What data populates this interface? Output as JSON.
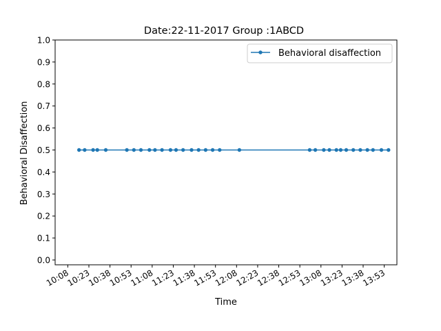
{
  "chart_data": {
    "type": "line",
    "title": "Date:22-11-2017 Group :1ABCD",
    "xlabel": "Time",
    "ylabel": "Behavioral Disaffection",
    "ylim": [
      0,
      1.0
    ],
    "yticks": [
      "0.0",
      "0.1",
      "0.2",
      "0.3",
      "0.4",
      "0.5",
      "0.6",
      "0.7",
      "0.8",
      "0.9",
      "1.0"
    ],
    "xticks": [
      "10:08",
      "10:23",
      "10:38",
      "10:53",
      "11:08",
      "11:23",
      "11:38",
      "11:53",
      "12:08",
      "12:23",
      "12:38",
      "12:53",
      "13:08",
      "13:23",
      "13:38",
      "13:53"
    ],
    "xlim": [
      "09:59",
      "14:02"
    ],
    "grid": false,
    "legend_position": "top-right",
    "series": [
      {
        "name": "Behavioral disaffection",
        "color": "#1f77b4",
        "marker": "circle",
        "x": [
          "10:16",
          "10:20",
          "10:26",
          "10:29",
          "10:35",
          "10:50",
          "10:55",
          "11:00",
          "11:06",
          "11:10",
          "11:15",
          "11:21",
          "11:25",
          "11:30",
          "11:36",
          "11:41",
          "11:46",
          "11:51",
          "11:56",
          "12:10",
          "13:00",
          "13:04",
          "13:10",
          "13:14",
          "13:19",
          "13:22",
          "13:26",
          "13:31",
          "13:36",
          "13:41",
          "13:45",
          "13:51",
          "13:56"
        ],
        "y": [
          0.5,
          0.5,
          0.5,
          0.5,
          0.5,
          0.5,
          0.5,
          0.5,
          0.5,
          0.5,
          0.5,
          0.5,
          0.5,
          0.5,
          0.5,
          0.5,
          0.5,
          0.5,
          0.5,
          0.5,
          0.5,
          0.5,
          0.5,
          0.5,
          0.5,
          0.5,
          0.5,
          0.5,
          0.5,
          0.5,
          0.5,
          0.5,
          0.5
        ]
      }
    ]
  }
}
